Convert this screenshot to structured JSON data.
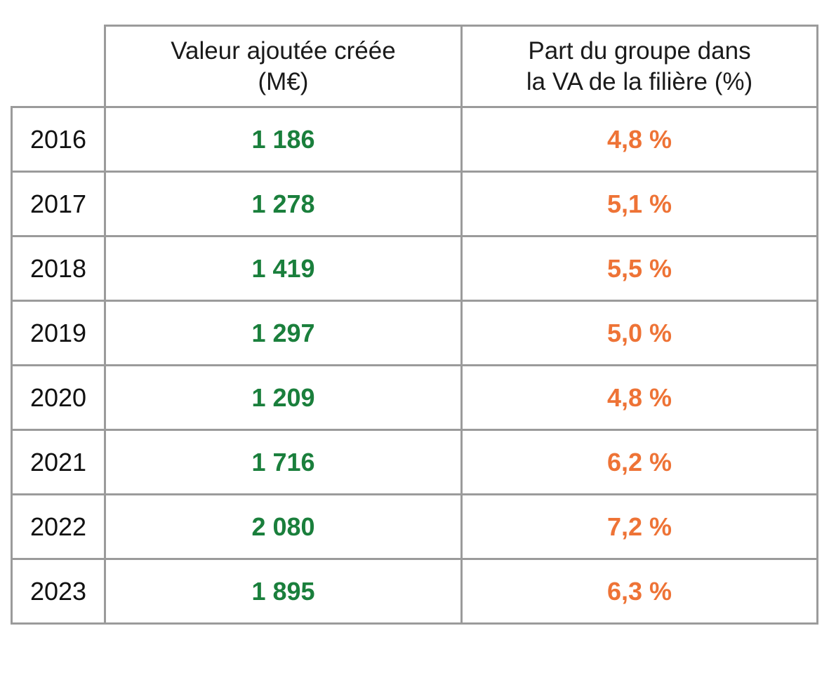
{
  "colors": {
    "border": "#9b9b9b",
    "value_green": "#1a7f3c",
    "share_orange": "#ee7336",
    "text_dark": "#111111"
  },
  "table": {
    "headers": {
      "va_line1": "Valeur ajoutée créée",
      "va_line2": "(M€)",
      "share_line1": "Part du groupe dans",
      "share_line2": "la VA de la filière  (%)"
    },
    "rows": [
      {
        "year": "2016",
        "va": "1 186",
        "share": "4,8 %"
      },
      {
        "year": "2017",
        "va": "1 278",
        "share": "5,1 %"
      },
      {
        "year": "2018",
        "va": "1 419",
        "share": "5,5 %"
      },
      {
        "year": "2019",
        "va": "1 297",
        "share": "5,0 %"
      },
      {
        "year": "2020",
        "va": "1 209",
        "share": "4,8 %"
      },
      {
        "year": "2021",
        "va": "1 716",
        "share": "6,2 %"
      },
      {
        "year": "2022",
        "va": "2 080",
        "share": "7,2 %"
      },
      {
        "year": "2023",
        "va": "1 895",
        "share": "6,3 %"
      }
    ]
  }
}
